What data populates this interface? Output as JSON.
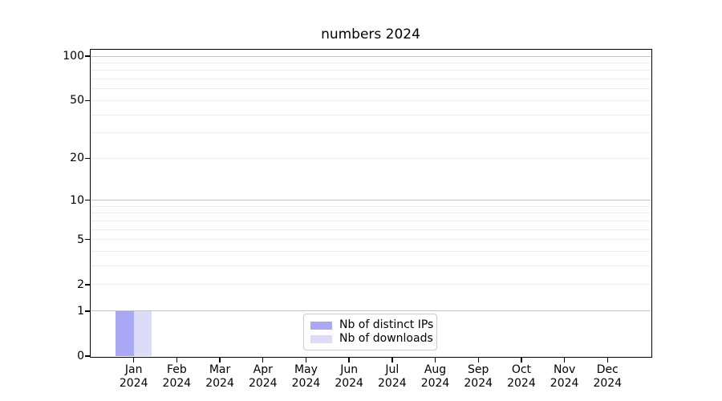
{
  "chart_data": {
    "type": "bar",
    "title": "numbers 2024",
    "categories": [
      "Jan",
      "Feb",
      "Mar",
      "Apr",
      "May",
      "Jun",
      "Jul",
      "Aug",
      "Sep",
      "Oct",
      "Nov",
      "Dec"
    ],
    "category_year": "2024",
    "series": [
      {
        "name": "Nb of distinct IPs",
        "color": "#a8a8f4",
        "values": [
          1,
          0,
          0,
          0,
          0,
          0,
          0,
          0,
          0,
          0,
          0,
          0
        ]
      },
      {
        "name": "Nb of downloads",
        "color": "#dcdcf8",
        "values": [
          1,
          0,
          0,
          0,
          0,
          0,
          0,
          0,
          0,
          0,
          0,
          0
        ]
      }
    ],
    "y_axis": {
      "scale": "log1p",
      "tick_values": [
        0,
        1,
        2,
        5,
        10,
        20,
        50,
        100
      ],
      "major_grid_values": [
        1,
        10,
        100
      ],
      "minor_grid_values": [
        2,
        3,
        4,
        5,
        6,
        7,
        8,
        9,
        20,
        30,
        40,
        50,
        60,
        70,
        80,
        90
      ],
      "max_tick": 100
    },
    "legend": {
      "position": "lower center"
    },
    "grid": true,
    "colors": {
      "major_grid": "#c4c4c4",
      "minor_grid": "#ececec",
      "axis": "#000000",
      "text": "#000000",
      "background": "#ffffff"
    }
  }
}
